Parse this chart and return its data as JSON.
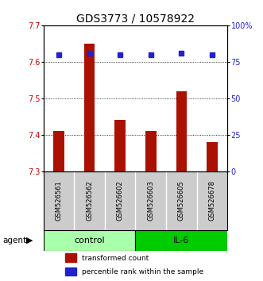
{
  "title": "GDS3773 / 10578922",
  "samples": [
    "GSM526561",
    "GSM526562",
    "GSM526602",
    "GSM526603",
    "GSM526605",
    "GSM526678"
  ],
  "bar_values": [
    7.41,
    7.65,
    7.44,
    7.41,
    7.52,
    7.38
  ],
  "percentile_values": [
    80,
    81,
    80,
    80,
    81,
    80
  ],
  "ylim_left": [
    7.3,
    7.7
  ],
  "ylim_right": [
    0,
    100
  ],
  "yticks_left": [
    7.3,
    7.4,
    7.5,
    7.6,
    7.7
  ],
  "yticks_right": [
    0,
    25,
    50,
    75,
    100
  ],
  "bar_color": "#AA1100",
  "dot_color": "#2222CC",
  "bar_bottom": 7.3,
  "agent_label": "agent",
  "legend_bar_label": "transformed count",
  "legend_dot_label": "percentile rank within the sample",
  "title_fontsize": 10,
  "tick_fontsize": 7,
  "sample_fontsize": 6,
  "group_fontsize": 8,
  "legend_fontsize": 6.5,
  "grid_color": "black",
  "background_color": "#ffffff",
  "sample_box_color": "#cccccc",
  "control_color": "#aaffaa",
  "il6_color": "#00cc00",
  "left_tick_color": "#cc0000",
  "right_tick_color": "#2222cc"
}
